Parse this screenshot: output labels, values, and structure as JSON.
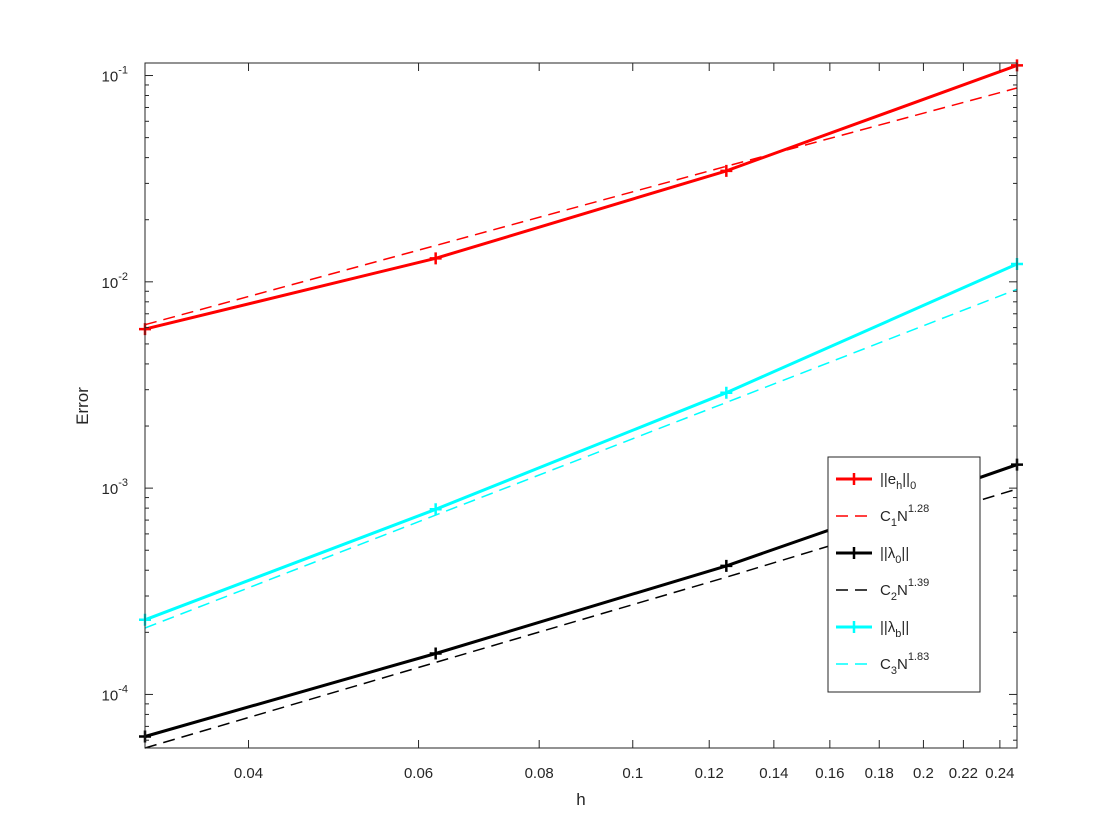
{
  "chart_data": {
    "type": "line",
    "title": "",
    "xlabel": "h",
    "ylabel": "Error",
    "xscale": "log",
    "yscale": "log",
    "xlim": [
      0.03125,
      0.25
    ],
    "ylim": [
      5.5e-05,
      0.115
    ],
    "grid": false,
    "legend_location": "right",
    "xticks": [
      0.04,
      0.06,
      0.08,
      0.1,
      0.12,
      0.14,
      0.16,
      0.18,
      0.2,
      0.22,
      0.24
    ],
    "xtick_labels": [
      "0.04",
      "0.06",
      "0.08",
      "0.1",
      "0.12",
      "0.14",
      "0.16",
      "0.18",
      "0.2",
      "0.22",
      "0.24"
    ],
    "yticks": [
      {
        "value": 0.0001,
        "base": "10",
        "exp": "-4"
      },
      {
        "value": 0.001,
        "base": "10",
        "exp": "-3"
      },
      {
        "value": 0.01,
        "base": "10",
        "exp": "-2"
      },
      {
        "value": 0.1,
        "base": "10",
        "exp": "-1"
      }
    ],
    "x": [
      0.03125,
      0.0625,
      0.125,
      0.25
    ],
    "series": [
      {
        "id": "eh",
        "values": [
          0.0059,
          0.013,
          0.0345,
          0.112
        ],
        "color": "#ff0000",
        "style": "solid",
        "marker": "+",
        "width": 3
      },
      {
        "id": "c1",
        "values": [
          0.0062,
          0.015,
          0.0363,
          0.087
        ],
        "color": "#ff0000",
        "style": "dashed",
        "marker": "none",
        "width": 1.5
      },
      {
        "id": "l0",
        "values": [
          6.25e-05,
          0.000158,
          0.00042,
          0.0013
        ],
        "color": "#000000",
        "style": "solid",
        "marker": "+",
        "width": 3
      },
      {
        "id": "c2",
        "values": [
          5.5e-05,
          0.000143,
          0.00037,
          0.00099
        ],
        "color": "#000000",
        "style": "dashed",
        "marker": "none",
        "width": 1.5
      },
      {
        "id": "lb",
        "values": [
          0.00023,
          0.00079,
          0.0029,
          0.0122
        ],
        "color": "#00ffff",
        "style": "solid",
        "marker": "+",
        "width": 3
      },
      {
        "id": "c3",
        "values": [
          0.00021,
          0.00074,
          0.0026,
          0.0092
        ],
        "color": "#00ffff",
        "style": "dashed",
        "marker": "none",
        "width": 1.5
      }
    ],
    "legend": [
      {
        "series": "eh",
        "open": "||e",
        "sub": "h",
        "close": "||",
        "sub2": "0",
        "sup": ""
      },
      {
        "series": "c1",
        "open": "C",
        "sub": "1",
        "close": "N",
        "sub2": "",
        "sup": "1.28"
      },
      {
        "series": "l0",
        "open": "||λ",
        "sub": "0",
        "close": "||",
        "sub2": "",
        "sup": ""
      },
      {
        "series": "c2",
        "open": "C",
        "sub": "2",
        "close": "N",
        "sub2": "",
        "sup": "1.39"
      },
      {
        "series": "lb",
        "open": "||λ",
        "sub": "b",
        "close": "||",
        "sub2": "",
        "sup": ""
      },
      {
        "series": "c3",
        "open": "C",
        "sub": "3",
        "close": "N",
        "sub2": "",
        "sup": "1.83"
      }
    ]
  }
}
